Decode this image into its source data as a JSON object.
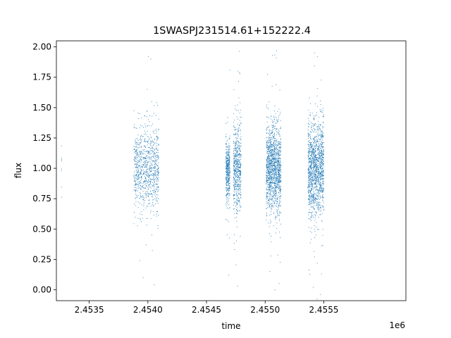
{
  "chart_data": {
    "type": "scatter",
    "title": "1SWASPJ231514.61+152222.4",
    "xlabel": "time",
    "ylabel": "flux",
    "x_offset_label": "1e6",
    "xlim": [
      2453220,
      2456200
    ],
    "ylim": [
      -0.09,
      2.05
    ],
    "x_ticks": [
      2453500,
      2454000,
      2454500,
      2455000,
      2455500
    ],
    "x_tick_labels": [
      "2.4535",
      "2.4540",
      "2.4545",
      "2.4550",
      "2.4555"
    ],
    "y_ticks": [
      0.0,
      0.25,
      0.5,
      0.75,
      1.0,
      1.25,
      1.5,
      1.75,
      2.0
    ],
    "y_tick_labels": [
      "0.00",
      "0.25",
      "0.50",
      "0.75",
      "1.00",
      "1.25",
      "1.50",
      "1.75",
      "2.00"
    ],
    "grid": false,
    "marker_color": "#1f77b4",
    "series": [
      {
        "points_note_free": true,
        "clusters": [
          {
            "x_range": [
              2453262,
              2453266
            ],
            "y_mean": 1.0,
            "y_sd": 0.15,
            "count": 8
          },
          {
            "x_range": [
              2453880,
              2454095
            ],
            "y_mean": 1.0,
            "y_sd": 0.17,
            "count": 900
          },
          {
            "x_range": [
              2454665,
              2454700
            ],
            "y_mean": 0.98,
            "y_sd": 0.12,
            "count": 400
          },
          {
            "x_range": [
              2454730,
              2454795
            ],
            "y_mean": 1.0,
            "y_sd": 0.19,
            "count": 600
          },
          {
            "x_range": [
              2455010,
              2455135
            ],
            "y_mean": 1.0,
            "y_sd": 0.17,
            "count": 1400
          },
          {
            "x_range": [
              2455365,
              2455500
            ],
            "y_mean": 1.0,
            "y_sd": 0.19,
            "count": 1400
          }
        ],
        "outliers": [
          [
            2454003,
            1.92
          ],
          [
            2454025,
            1.9
          ],
          [
            2454055,
            0.04
          ],
          [
            2453930,
            0.24
          ],
          [
            2453960,
            0.1
          ],
          [
            2454700,
            1.81
          ],
          [
            2454770,
            1.8
          ],
          [
            2454765,
            0.03
          ],
          [
            2454690,
            0.12
          ],
          [
            2455063,
            1.93
          ],
          [
            2455095,
            1.91
          ],
          [
            2455120,
            0.05
          ],
          [
            2455040,
            0.15
          ],
          [
            2455420,
            1.95
          ],
          [
            2455445,
            1.92
          ],
          [
            2455410,
            0.02
          ],
          [
            2455480,
            0.13
          ]
        ]
      }
    ]
  }
}
